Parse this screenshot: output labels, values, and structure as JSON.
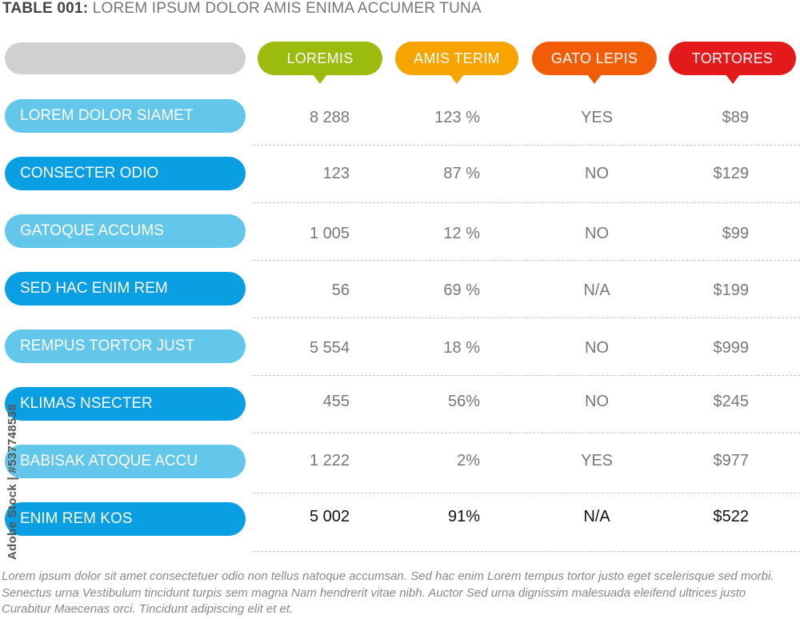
{
  "title": {
    "bold": "TABLE 001:",
    "rest": "LOREM IPSUM DOLOR AMIS ENIMA ACCUMER TUNA"
  },
  "columns": [
    {
      "label": "LOREMIS",
      "color": "#9bbb0e"
    },
    {
      "label": "AMIS TERIM",
      "color": "#f7a400"
    },
    {
      "label": "GATO LEPIS",
      "color": "#f25c06"
    },
    {
      "label": "TORTORES",
      "color": "#e3191c"
    }
  ],
  "row_colors": {
    "light": "#62c7ea",
    "dark": "#0a9ee2"
  },
  "rows": [
    {
      "label": "LOREM DOLOR SIAMET",
      "values": [
        "8 288",
        "123 %",
        "YES",
        "$89"
      ]
    },
    {
      "label": "CONSECTER ODIO",
      "values": [
        "123",
        "87 %",
        "NO",
        "$129"
      ]
    },
    {
      "label": "GATOQUE ACCUMS",
      "values": [
        "1 005",
        "12 %",
        "NO",
        "$99"
      ]
    },
    {
      "label": "SED HAC ENIM REM",
      "values": [
        "56",
        "69 %",
        "N/A",
        "$199"
      ]
    },
    {
      "label": "REMPUS TORTOR JUST",
      "values": [
        "5 554",
        "18 %",
        "NO",
        "$999"
      ]
    },
    {
      "label": "KLIMAS NSECTER",
      "values": [
        "455",
        "56%",
        "NO",
        "$245"
      ]
    },
    {
      "label": "BABISAK ATOQUE ACCU",
      "values": [
        "1 222",
        "2%",
        "YES",
        "$977"
      ]
    },
    {
      "label": "ENIM REM KOS",
      "values": [
        "5 002",
        "91%",
        "N/A",
        "$522"
      ]
    }
  ],
  "footnote": "Lorem ipsum dolor sit amet consectetuer odio non tellus natoque accumsan. Sed hac enim Lorem tempus tortor justo eget scelerisque sed morbi. Senectus urna Vestibulum tincidunt turpis sem magna Nam hendrerit vitae nibh. Auctor Sed urna dignissim malesuada eleifend ultrices justo Curabitur Maecenas orci. Tincidunt adipiscing elit et et.",
  "watermark": "Adobe Stock | #537748538"
}
